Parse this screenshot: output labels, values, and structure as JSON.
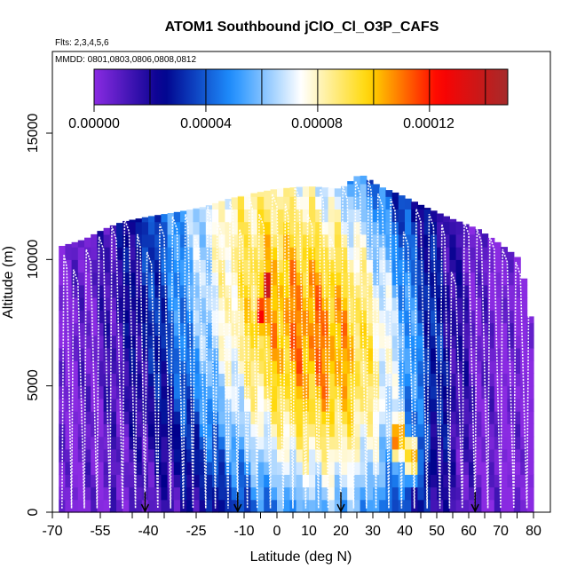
{
  "chart_data": {
    "type": "heatmap",
    "title": "ATOM1 Southbound jClO_Cl_O3P_CAFS",
    "subtitle_flights": "Flts: 2,3,4,5,6",
    "subtitle_dates": "MMDD: 0801,0803,0806,0808,0812",
    "xlabel": "Latitude (deg N)",
    "ylabel": "Altitude (m)",
    "xlim": [
      -70,
      85
    ],
    "ylim": [
      0,
      17500
    ],
    "x_tick_labels": [
      "-70",
      "-55",
      "-40",
      "-25",
      "-10",
      "0",
      "10",
      "20",
      "30",
      "40",
      "50",
      "60",
      "70",
      "80"
    ],
    "y_tick_labels": [
      "0",
      "5000",
      "10000",
      "15000"
    ],
    "y_ticks": [
      0,
      5000,
      10000,
      15000
    ],
    "colorbar": {
      "min": 0,
      "max": 0.000148,
      "tick_values": [
        0,
        4e-05,
        8e-05,
        0.00012
      ],
      "tick_labels": [
        "0.00000",
        "0.00004",
        "0.00008",
        "0.00012"
      ],
      "colors": [
        "#8a2be2",
        "#00008b",
        "#1e90ff",
        "#ffffff",
        "#ffd700",
        "#ff0000",
        "#a52a2a"
      ]
    },
    "column_tops": [
      {
        "lat": -68,
        "top": 10500
      },
      {
        "lat": -60,
        "top": 10800
      },
      {
        "lat": -54,
        "top": 11200
      },
      {
        "lat": -48,
        "top": 11500
      },
      {
        "lat": -40,
        "top": 11700
      },
      {
        "lat": -30,
        "top": 11900
      },
      {
        "lat": -22,
        "top": 12100
      },
      {
        "lat": -15,
        "top": 12400
      },
      {
        "lat": -8,
        "top": 12600
      },
      {
        "lat": 0,
        "top": 12800
      },
      {
        "lat": 10,
        "top": 12900
      },
      {
        "lat": 20,
        "top": 12800
      },
      {
        "lat": 26,
        "top": 13400
      },
      {
        "lat": 32,
        "top": 12900
      },
      {
        "lat": 38,
        "top": 12600
      },
      {
        "lat": 46,
        "top": 12100
      },
      {
        "lat": 55,
        "top": 11600
      },
      {
        "lat": 63,
        "top": 11200
      },
      {
        "lat": 70,
        "top": 10600
      },
      {
        "lat": 76,
        "top": 10000
      },
      {
        "lat": 80,
        "top": 7000
      }
    ],
    "profile_lats": [
      -67,
      -64,
      -60,
      -56,
      -52,
      -48,
      -44,
      -41,
      -37,
      -33,
      -29,
      -26,
      -22,
      -19,
      -15,
      -12,
      -9,
      -6,
      -2,
      2,
      5,
      9,
      13,
      16,
      20,
      24,
      28,
      31,
      35,
      39,
      43,
      47,
      51,
      54,
      58,
      62,
      66,
      70,
      74,
      78
    ],
    "profile_tops": [
      10200,
      9600,
      10400,
      10900,
      11300,
      11600,
      11000,
      10300,
      11400,
      11700,
      11800,
      10900,
      12100,
      11500,
      12300,
      11200,
      12500,
      11800,
      12600,
      12200,
      12900,
      11800,
      12800,
      10900,
      12900,
      13100,
      13200,
      12600,
      12400,
      11100,
      12000,
      11800,
      11400,
      9500,
      11500,
      11200,
      10900,
      10400,
      9900,
      9200
    ],
    "vertical_profile_lats": [
      -41,
      -12,
      20,
      62
    ],
    "hotspots": [
      {
        "lat": -5,
        "alt": 7800,
        "value": 0.000135
      },
      {
        "lat": -3,
        "alt": 9000,
        "value": 0.00014
      },
      {
        "lat": 38,
        "alt": 3000,
        "value": 0.000118
      },
      {
        "lat": 42,
        "alt": 2200,
        "value": 0.000112
      }
    ]
  }
}
